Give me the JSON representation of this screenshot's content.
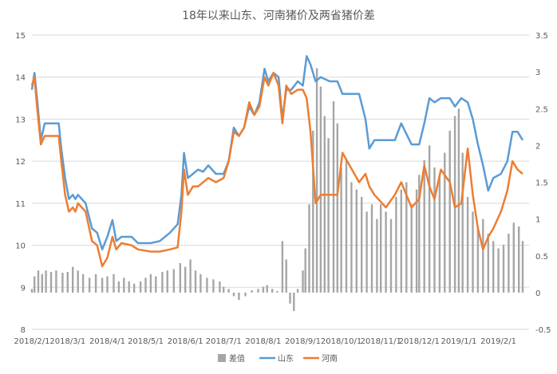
{
  "chart_data": {
    "type": "combo",
    "title": "18年以来山东、河南猪价及两省猪价差",
    "x_ticks": [
      "2018/2/1",
      "2018/3/1",
      "2018/4/1",
      "2018/5/1",
      "2018/6/1",
      "2018/7/1",
      "2018/8/1",
      "2018/9/1",
      "2018/10/1",
      "2018/11/1",
      "2018/12/1",
      "2019/1/1",
      "2019/2/1"
    ],
    "y_left": {
      "min": 8,
      "max": 15,
      "ticks": [
        8,
        9,
        10,
        11,
        12,
        13,
        14,
        15
      ]
    },
    "y_right": {
      "min": -0.5,
      "max": 3.5,
      "ticks": [
        -0.5,
        0,
        0.5,
        1,
        1.5,
        2,
        2.5,
        3,
        3.5
      ]
    },
    "grid": true,
    "legend_position": "bottom",
    "colors": {
      "diff": "#a6a6a6",
      "shandong": "#5b9bd5",
      "henan": "#ed7d31"
    },
    "series": [
      {
        "name": "差值",
        "type": "bar",
        "axis": "right",
        "color": "#a6a6a6",
        "points": [
          [
            "2018/2/1",
            0.05
          ],
          [
            "2018/2/3",
            0.22
          ],
          [
            "2018/2/6",
            0.3
          ],
          [
            "2018/2/9",
            0.25
          ],
          [
            "2018/2/12",
            0.3
          ],
          [
            "2018/2/16",
            0.28
          ],
          [
            "2018/2/20",
            0.3
          ],
          [
            "2018/2/25",
            0.27
          ],
          [
            "2018/3/1",
            0.28
          ],
          [
            "2018/3/5",
            0.35
          ],
          [
            "2018/3/9",
            0.3
          ],
          [
            "2018/3/13",
            0.25
          ],
          [
            "2018/3/18",
            0.2
          ],
          [
            "2018/3/23",
            0.25
          ],
          [
            "2018/3/28",
            0.2
          ],
          [
            "2018/4/1",
            0.22
          ],
          [
            "2018/4/6",
            0.25
          ],
          [
            "2018/4/10",
            0.15
          ],
          [
            "2018/4/14",
            0.2
          ],
          [
            "2018/4/18",
            0.15
          ],
          [
            "2018/4/22",
            0.12
          ],
          [
            "2018/4/27",
            0.15
          ],
          [
            "2018/5/1",
            0.2
          ],
          [
            "2018/5/5",
            0.25
          ],
          [
            "2018/5/9",
            0.22
          ],
          [
            "2018/5/14",
            0.28
          ],
          [
            "2018/5/18",
            0.3
          ],
          [
            "2018/5/23",
            0.32
          ],
          [
            "2018/5/28",
            0.4
          ],
          [
            "2018/6/1",
            0.35
          ],
          [
            "2018/6/5",
            0.45
          ],
          [
            "2018/6/9",
            0.3
          ],
          [
            "2018/6/13",
            0.25
          ],
          [
            "2018/6/18",
            0.2
          ],
          [
            "2018/6/23",
            0.18
          ],
          [
            "2018/6/28",
            0.15
          ],
          [
            "2018/7/1",
            0.08
          ],
          [
            "2018/7/5",
            0.05
          ],
          [
            "2018/7/9",
            -0.05
          ],
          [
            "2018/7/13",
            -0.1
          ],
          [
            "2018/7/18",
            -0.05
          ],
          [
            "2018/7/23",
            0.03
          ],
          [
            "2018/7/28",
            0.05
          ],
          [
            "2018/8/1",
            0.08
          ],
          [
            "2018/8/4",
            0.1
          ],
          [
            "2018/8/8",
            0.05
          ],
          [
            "2018/8/12",
            0.02
          ],
          [
            "2018/8/16",
            0.7
          ],
          [
            "2018/8/19",
            0.45
          ],
          [
            "2018/8/22",
            -0.15
          ],
          [
            "2018/8/25",
            -0.25
          ],
          [
            "2018/8/28",
            0.05
          ],
          [
            "2018/9/1",
            0.3
          ],
          [
            "2018/9/3",
            0.6
          ],
          [
            "2018/9/6",
            1.2
          ],
          [
            "2018/9/9",
            2.2
          ],
          [
            "2018/9/12",
            3.05
          ],
          [
            "2018/9/15",
            2.8
          ],
          [
            "2018/9/18",
            2.4
          ],
          [
            "2018/9/21",
            2.1
          ],
          [
            "2018/9/25",
            2.6
          ],
          [
            "2018/9/28",
            2.3
          ],
          [
            "2018/10/1",
            1.7
          ],
          [
            "2018/10/5",
            1.8
          ],
          [
            "2018/10/9",
            1.5
          ],
          [
            "2018/10/13",
            1.4
          ],
          [
            "2018/10/17",
            1.3
          ],
          [
            "2018/10/21",
            1.1
          ],
          [
            "2018/10/25",
            1.2
          ],
          [
            "2018/10/29",
            1.0
          ],
          [
            "2018/11/1",
            1.2
          ],
          [
            "2018/11/5",
            1.1
          ],
          [
            "2018/11/9",
            1.0
          ],
          [
            "2018/11/13",
            1.3
          ],
          [
            "2018/11/17",
            1.4
          ],
          [
            "2018/11/21",
            1.5
          ],
          [
            "2018/11/25",
            1.2
          ],
          [
            "2018/11/29",
            1.4
          ],
          [
            "2018/12/1",
            1.6
          ],
          [
            "2018/12/5",
            1.8
          ],
          [
            "2018/12/9",
            2.0
          ],
          [
            "2018/12/13",
            1.7
          ],
          [
            "2018/12/17",
            1.6
          ],
          [
            "2018/12/21",
            1.9
          ],
          [
            "2018/12/25",
            2.2
          ],
          [
            "2018/12/29",
            2.4
          ],
          [
            "2019/1/1",
            2.5
          ],
          [
            "2019/1/4",
            1.9
          ],
          [
            "2019/1/8",
            1.3
          ],
          [
            "2019/1/12",
            1.1
          ],
          [
            "2019/1/16",
            0.9
          ],
          [
            "2019/1/20",
            1.0
          ],
          [
            "2019/1/24",
            0.8
          ],
          [
            "2019/1/28",
            0.7
          ],
          [
            "2019/2/1",
            0.6
          ],
          [
            "2019/2/5",
            0.65
          ],
          [
            "2019/2/9",
            0.8
          ],
          [
            "2019/2/13",
            0.95
          ],
          [
            "2019/2/17",
            0.9
          ],
          [
            "2019/2/20",
            0.7
          ]
        ]
      },
      {
        "name": "山东",
        "type": "line",
        "axis": "left",
        "color": "#5b9bd5",
        "points": [
          [
            "2018/2/1",
            13.7
          ],
          [
            "2018/2/3",
            14.1
          ],
          [
            "2018/2/5",
            13.5
          ],
          [
            "2018/2/8",
            12.5
          ],
          [
            "2018/2/11",
            12.9
          ],
          [
            "2018/2/22",
            12.9
          ],
          [
            "2018/2/24",
            12.3
          ],
          [
            "2018/2/27",
            11.6
          ],
          [
            "2018/3/2",
            11.1
          ],
          [
            "2018/3/5",
            11.2
          ],
          [
            "2018/3/7",
            11.1
          ],
          [
            "2018/3/9",
            11.2
          ],
          [
            "2018/3/15",
            11.0
          ],
          [
            "2018/3/20",
            10.4
          ],
          [
            "2018/3/24",
            10.3
          ],
          [
            "2018/3/28",
            9.9
          ],
          [
            "2018/4/1",
            10.2
          ],
          [
            "2018/4/5",
            10.6
          ],
          [
            "2018/4/8",
            10.1
          ],
          [
            "2018/4/12",
            10.2
          ],
          [
            "2018/4/20",
            10.2
          ],
          [
            "2018/4/25",
            10.05
          ],
          [
            "2018/5/5",
            10.05
          ],
          [
            "2018/5/12",
            10.1
          ],
          [
            "2018/5/20",
            10.3
          ],
          [
            "2018/5/26",
            10.5
          ],
          [
            "2018/5/29",
            11.2
          ],
          [
            "2018/5/31",
            12.2
          ],
          [
            "2018/6/3",
            11.6
          ],
          [
            "2018/6/7",
            11.7
          ],
          [
            "2018/6/11",
            11.8
          ],
          [
            "2018/6/15",
            11.75
          ],
          [
            "2018/6/19",
            11.9
          ],
          [
            "2018/6/25",
            11.7
          ],
          [
            "2018/7/1",
            11.7
          ],
          [
            "2018/7/5",
            12.0
          ],
          [
            "2018/7/9",
            12.8
          ],
          [
            "2018/7/13",
            12.6
          ],
          [
            "2018/7/17",
            12.8
          ],
          [
            "2018/7/21",
            13.3
          ],
          [
            "2018/7/25",
            13.1
          ],
          [
            "2018/7/29",
            13.4
          ],
          [
            "2018/8/2",
            14.2
          ],
          [
            "2018/8/5",
            13.9
          ],
          [
            "2018/8/9",
            14.1
          ],
          [
            "2018/8/13",
            14.0
          ],
          [
            "2018/8/16",
            13.0
          ],
          [
            "2018/8/19",
            13.7
          ],
          [
            "2018/8/23",
            13.7
          ],
          [
            "2018/8/28",
            13.9
          ],
          [
            "2018/9/1",
            13.8
          ],
          [
            "2018/9/4",
            14.5
          ],
          [
            "2018/9/7",
            14.3
          ],
          [
            "2018/9/11",
            13.9
          ],
          [
            "2018/9/15",
            14.0
          ],
          [
            "2018/9/22",
            13.9
          ],
          [
            "2018/9/28",
            13.9
          ],
          [
            "2018/10/2",
            13.6
          ],
          [
            "2018/10/15",
            13.6
          ],
          [
            "2018/10/20",
            13.0
          ],
          [
            "2018/10/23",
            12.3
          ],
          [
            "2018/10/27",
            12.5
          ],
          [
            "2018/11/5",
            12.5
          ],
          [
            "2018/11/12",
            12.5
          ],
          [
            "2018/11/17",
            12.9
          ],
          [
            "2018/11/25",
            12.4
          ],
          [
            "2018/12/1",
            12.4
          ],
          [
            "2018/12/5",
            12.9
          ],
          [
            "2018/12/9",
            13.5
          ],
          [
            "2018/12/13",
            13.4
          ],
          [
            "2018/12/18",
            13.5
          ],
          [
            "2018/12/25",
            13.5
          ],
          [
            "2018/12/29",
            13.3
          ],
          [
            "2019/1/3",
            13.5
          ],
          [
            "2019/1/8",
            13.4
          ],
          [
            "2019/1/12",
            13.0
          ],
          [
            "2019/1/16",
            12.4
          ],
          [
            "2019/1/20",
            11.9
          ],
          [
            "2019/1/24",
            11.3
          ],
          [
            "2019/1/28",
            11.6
          ],
          [
            "2019/2/3",
            11.7
          ],
          [
            "2019/2/8",
            12.0
          ],
          [
            "2019/2/12",
            12.7
          ],
          [
            "2019/2/16",
            12.7
          ],
          [
            "2019/2/20",
            12.5
          ]
        ]
      },
      {
        "name": "河南",
        "type": "line",
        "axis": "left",
        "color": "#ed7d31",
        "points": [
          [
            "2018/2/1",
            13.8
          ],
          [
            "2018/2/3",
            14.0
          ],
          [
            "2018/2/5",
            13.3
          ],
          [
            "2018/2/8",
            12.4
          ],
          [
            "2018/2/11",
            12.6
          ],
          [
            "2018/2/22",
            12.6
          ],
          [
            "2018/2/24",
            12.0
          ],
          [
            "2018/2/27",
            11.2
          ],
          [
            "2018/3/2",
            10.8
          ],
          [
            "2018/3/5",
            10.9
          ],
          [
            "2018/3/7",
            10.8
          ],
          [
            "2018/3/9",
            11.0
          ],
          [
            "2018/3/15",
            10.8
          ],
          [
            "2018/3/20",
            10.1
          ],
          [
            "2018/3/24",
            10.0
          ],
          [
            "2018/3/28",
            9.5
          ],
          [
            "2018/4/1",
            9.7
          ],
          [
            "2018/4/5",
            10.2
          ],
          [
            "2018/4/8",
            9.9
          ],
          [
            "2018/4/12",
            10.05
          ],
          [
            "2018/4/20",
            10.0
          ],
          [
            "2018/4/25",
            9.9
          ],
          [
            "2018/5/5",
            9.85
          ],
          [
            "2018/5/12",
            9.85
          ],
          [
            "2018/5/20",
            9.9
          ],
          [
            "2018/5/26",
            9.95
          ],
          [
            "2018/5/29",
            10.8
          ],
          [
            "2018/5/31",
            11.8
          ],
          [
            "2018/6/3",
            11.2
          ],
          [
            "2018/6/7",
            11.4
          ],
          [
            "2018/6/11",
            11.4
          ],
          [
            "2018/6/15",
            11.5
          ],
          [
            "2018/6/19",
            11.6
          ],
          [
            "2018/6/25",
            11.5
          ],
          [
            "2018/7/1",
            11.6
          ],
          [
            "2018/7/5",
            12.0
          ],
          [
            "2018/7/9",
            12.7
          ],
          [
            "2018/7/13",
            12.6
          ],
          [
            "2018/7/17",
            12.8
          ],
          [
            "2018/7/21",
            13.4
          ],
          [
            "2018/7/25",
            13.1
          ],
          [
            "2018/7/29",
            13.3
          ],
          [
            "2018/8/2",
            14.0
          ],
          [
            "2018/8/5",
            13.8
          ],
          [
            "2018/8/9",
            14.1
          ],
          [
            "2018/8/13",
            13.8
          ],
          [
            "2018/8/16",
            12.9
          ],
          [
            "2018/8/19",
            13.8
          ],
          [
            "2018/8/23",
            13.6
          ],
          [
            "2018/8/28",
            13.7
          ],
          [
            "2018/9/1",
            13.7
          ],
          [
            "2018/9/4",
            13.5
          ],
          [
            "2018/9/7",
            12.7
          ],
          [
            "2018/9/11",
            11.0
          ],
          [
            "2018/9/15",
            11.2
          ],
          [
            "2018/9/22",
            11.2
          ],
          [
            "2018/9/28",
            11.2
          ],
          [
            "2018/10/2",
            12.2
          ],
          [
            "2018/10/15",
            11.5
          ],
          [
            "2018/10/20",
            11.7
          ],
          [
            "2018/10/23",
            11.4
          ],
          [
            "2018/10/27",
            11.2
          ],
          [
            "2018/11/5",
            10.9
          ],
          [
            "2018/11/12",
            11.2
          ],
          [
            "2018/11/17",
            11.5
          ],
          [
            "2018/11/25",
            10.9
          ],
          [
            "2018/12/1",
            11.1
          ],
          [
            "2018/12/5",
            11.9
          ],
          [
            "2018/12/9",
            11.4
          ],
          [
            "2018/12/13",
            11.1
          ],
          [
            "2018/12/18",
            11.8
          ],
          [
            "2018/12/25",
            11.5
          ],
          [
            "2018/12/29",
            10.9
          ],
          [
            "2019/1/3",
            11.0
          ],
          [
            "2019/1/8",
            12.3
          ],
          [
            "2019/1/12",
            11.2
          ],
          [
            "2019/1/16",
            10.4
          ],
          [
            "2019/1/20",
            9.9
          ],
          [
            "2019/1/24",
            10.2
          ],
          [
            "2019/1/28",
            10.4
          ],
          [
            "2019/2/3",
            10.8
          ],
          [
            "2019/2/8",
            11.3
          ],
          [
            "2019/2/12",
            12.0
          ],
          [
            "2019/2/16",
            11.8
          ],
          [
            "2019/2/20",
            11.7
          ]
        ]
      }
    ]
  }
}
